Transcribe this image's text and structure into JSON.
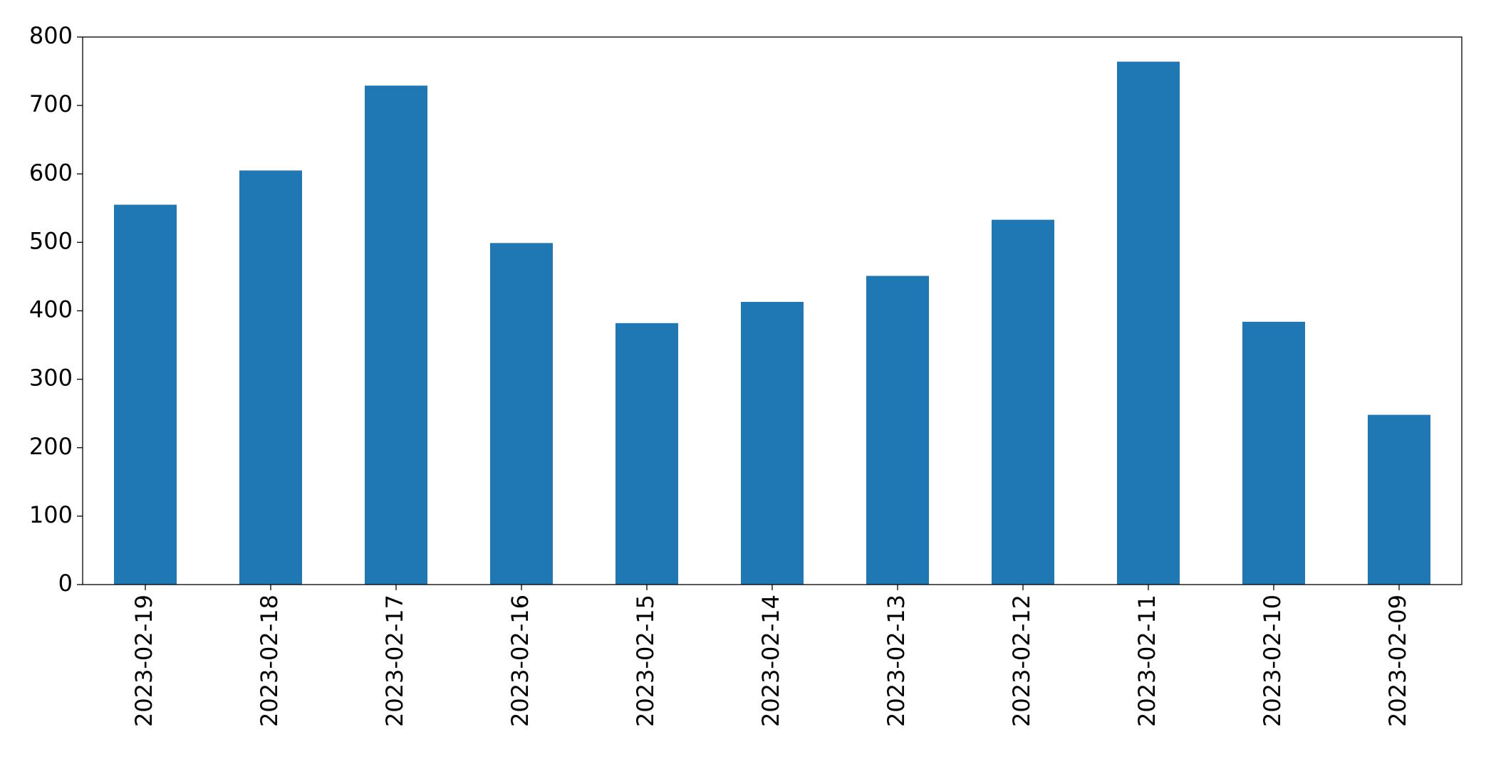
{
  "chart_data": {
    "type": "bar",
    "categories": [
      "2023-02-19",
      "2023-02-18",
      "2023-02-17",
      "2023-02-16",
      "2023-02-15",
      "2023-02-14",
      "2023-02-13",
      "2023-02-12",
      "2023-02-11",
      "2023-02-10",
      "2023-02-09"
    ],
    "values": [
      555,
      605,
      729,
      499,
      382,
      413,
      451,
      533,
      764,
      384,
      248
    ],
    "color": "#1f77b4",
    "ylim": [
      0,
      800
    ],
    "yticks": [
      0,
      100,
      200,
      300,
      400,
      500,
      600,
      700,
      800
    ],
    "grid": false
  }
}
